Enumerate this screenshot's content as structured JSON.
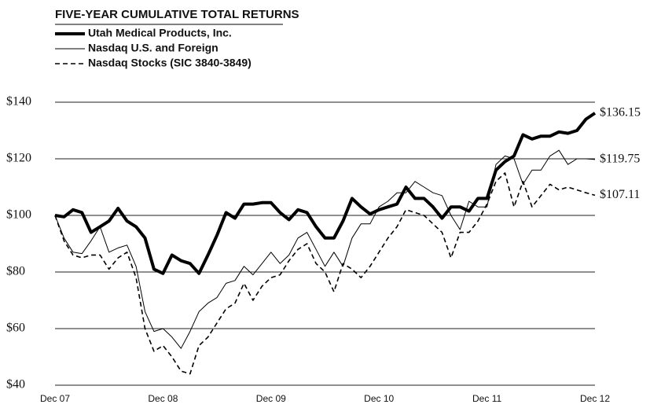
{
  "chart_data": {
    "type": "line",
    "title": "FIVE-YEAR CUMULATIVE TOTAL RETURNS",
    "categories": [
      "Dec 07",
      null,
      null,
      null,
      null,
      null,
      null,
      null,
      null,
      null,
      null,
      null,
      "Dec 08",
      null,
      null,
      null,
      null,
      null,
      null,
      null,
      null,
      null,
      null,
      null,
      "Dec 09",
      null,
      null,
      null,
      null,
      null,
      null,
      null,
      null,
      null,
      null,
      null,
      "Dec 10",
      null,
      null,
      null,
      null,
      null,
      null,
      null,
      null,
      null,
      null,
      null,
      "Dec 11",
      null,
      null,
      null,
      null,
      null,
      null,
      null,
      null,
      null,
      null,
      null,
      "Dec 12"
    ],
    "series": [
      {
        "name": "Utah Medical Products, Inc.",
        "color": "#000000",
        "line_width": 4,
        "dash": false,
        "values": [
          100,
          99.5,
          102,
          101,
          94,
          96,
          98,
          102.5,
          98,
          96,
          92,
          81,
          79.5,
          86,
          84,
          83,
          79.5,
          86,
          93,
          101,
          99,
          104,
          104,
          104.5,
          104.5,
          101,
          98.5,
          102,
          101,
          96,
          92,
          92,
          98,
          106,
          103,
          100.5,
          102,
          103,
          104,
          110,
          106,
          106,
          103,
          99,
          103,
          103,
          101.5,
          106,
          106,
          116,
          119,
          121,
          128.5,
          127,
          128,
          128,
          129.5,
          129,
          130,
          134,
          136.15
        ],
        "value_labels": [
          null,
          null,
          null,
          null,
          null,
          null,
          null,
          null,
          null,
          null,
          null,
          null,
          null,
          null,
          null,
          null,
          null,
          null,
          null,
          null,
          null,
          null,
          null,
          null,
          null,
          null,
          null,
          null,
          null,
          null,
          null,
          null,
          null,
          null,
          null,
          null,
          null,
          null,
          null,
          null,
          null,
          null,
          null,
          null,
          null,
          null,
          null,
          null,
          null,
          null,
          null,
          null,
          null,
          null,
          null,
          null,
          null,
          null,
          null,
          null,
          "$136.15"
        ]
      },
      {
        "name": "Nasdaq U.S. and Foreign",
        "color": "#000000",
        "line_width": 1,
        "dash": false,
        "values": [
          100,
          92,
          87,
          86.5,
          91,
          96,
          87,
          88.5,
          89.5,
          82,
          66,
          59,
          60,
          57,
          53,
          59,
          66,
          69,
          71,
          76,
          77,
          82,
          79,
          83,
          87,
          83,
          86,
          92,
          94,
          88,
          82,
          87,
          82,
          92,
          97,
          97,
          103,
          105,
          108,
          108,
          112,
          110,
          108,
          107,
          100,
          95,
          105,
          103,
          103,
          118,
          121,
          120,
          111,
          116,
          116,
          121,
          123,
          118,
          120,
          120,
          119.75
        ],
        "value_labels": [
          null,
          null,
          null,
          null,
          null,
          null,
          null,
          null,
          null,
          null,
          null,
          null,
          null,
          null,
          null,
          null,
          null,
          null,
          null,
          null,
          null,
          null,
          null,
          null,
          null,
          null,
          null,
          null,
          null,
          null,
          null,
          null,
          null,
          null,
          null,
          null,
          null,
          null,
          null,
          null,
          null,
          null,
          null,
          null,
          null,
          null,
          null,
          null,
          null,
          null,
          null,
          null,
          null,
          null,
          null,
          null,
          null,
          null,
          null,
          null,
          "$119.75"
        ]
      },
      {
        "name": "Nasdaq Stocks (SIC 3840-3849)",
        "color": "#000000",
        "line_width": 1.6,
        "dash": true,
        "values": [
          100,
          91,
          86,
          85,
          86,
          86,
          81,
          85,
          87,
          78,
          60,
          52,
          54,
          50,
          45,
          44,
          54,
          57,
          62,
          67,
          69,
          76,
          70,
          75,
          78,
          79,
          84,
          88,
          90,
          83,
          80,
          73,
          83,
          81,
          78,
          82,
          87,
          92,
          96,
          102,
          101,
          100,
          97,
          94,
          85,
          94,
          94,
          98,
          104,
          112,
          115,
          103,
          112,
          103,
          107,
          111,
          109,
          110,
          109,
          108,
          107.11
        ],
        "value_labels": [
          null,
          null,
          null,
          null,
          null,
          null,
          null,
          null,
          null,
          null,
          null,
          null,
          null,
          null,
          null,
          null,
          null,
          null,
          null,
          null,
          null,
          null,
          null,
          null,
          null,
          null,
          null,
          null,
          null,
          null,
          null,
          null,
          null,
          null,
          null,
          null,
          null,
          null,
          null,
          null,
          null,
          null,
          null,
          null,
          null,
          null,
          null,
          null,
          null,
          null,
          null,
          null,
          null,
          null,
          null,
          null,
          null,
          null,
          null,
          null,
          "$107.11"
        ]
      }
    ],
    "ylim": [
      40,
      140
    ],
    "yticks": [
      {
        "value": 40,
        "label": "$40"
      },
      {
        "value": 60,
        "label": "$60"
      },
      {
        "value": 80,
        "label": "$80"
      },
      {
        "value": 100,
        "label": "$100"
      },
      {
        "value": 120,
        "label": "$120"
      },
      {
        "value": 140,
        "label": "$140"
      }
    ],
    "grid": true,
    "legend": "top-left"
  }
}
